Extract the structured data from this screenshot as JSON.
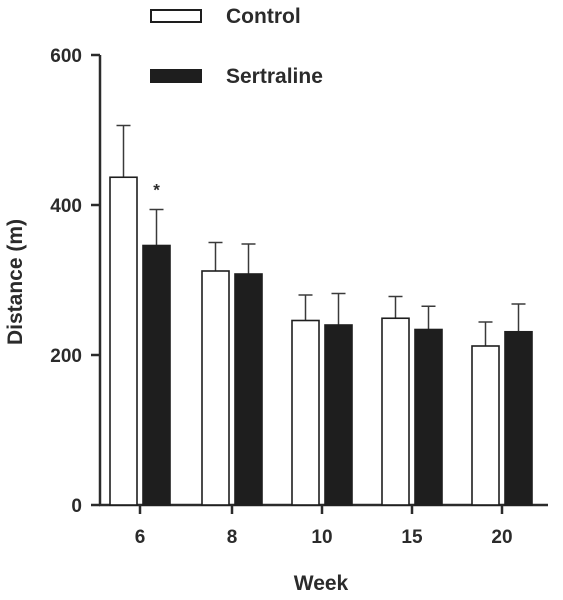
{
  "chart_data": {
    "type": "bar",
    "title": "",
    "xlabel": "Week",
    "ylabel": "Distance (m)",
    "ylim": [
      0,
      600
    ],
    "yticks": [
      0,
      200,
      400,
      600
    ],
    "categories": [
      "6",
      "8",
      "10",
      "15",
      "20"
    ],
    "series": [
      {
        "name": "Control",
        "fill": "#ffffff",
        "values": [
          437,
          312,
          246,
          249,
          212
        ],
        "error": [
          69,
          38,
          34,
          29,
          32
        ]
      },
      {
        "name": "Sertraline",
        "fill": "#1e1e1e",
        "values": [
          346,
          308,
          240,
          234,
          231
        ],
        "error": [
          48,
          40,
          42,
          31,
          37
        ]
      }
    ],
    "annotations": [
      {
        "category": "6",
        "series": "Sertraline",
        "text": "*"
      }
    ],
    "legend": "top",
    "grid": false
  }
}
